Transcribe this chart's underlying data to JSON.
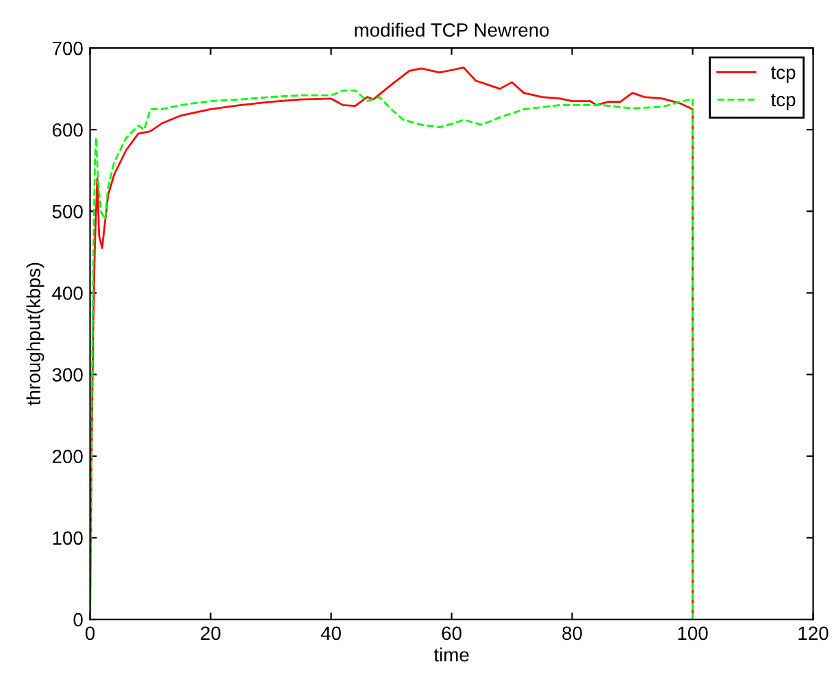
{
  "chart_data": {
    "type": "line",
    "title": "modified TCP Newreno",
    "xlabel": "time",
    "ylabel": "throughput(kbps)",
    "xlim": [
      0,
      120
    ],
    "xticks": [
      0,
      20,
      40,
      60,
      80,
      100,
      120
    ],
    "ylim": [
      0,
      700
    ],
    "yticks": [
      0,
      100,
      200,
      300,
      400,
      500,
      600,
      700
    ],
    "grid": false,
    "legend": "top right",
    "series": [
      {
        "name": "tcp",
        "color": "#ff0000",
        "line_style": "solid",
        "x": [
          0,
          0.2,
          0.5,
          0.8,
          1.2,
          1.5,
          2,
          3,
          4,
          6,
          8,
          10,
          12,
          15,
          20,
          25,
          30,
          35,
          40,
          42,
          44,
          46,
          47,
          50,
          53,
          55,
          58,
          60,
          62,
          64,
          66,
          68,
          70,
          72,
          75,
          78,
          80,
          83,
          84,
          86,
          88,
          90,
          92,
          95,
          98,
          100,
          100
        ],
        "values": [
          0,
          170,
          350,
          460,
          540,
          470,
          455,
          520,
          545,
          575,
          595,
          598,
          608,
          617,
          625,
          630,
          634,
          637,
          638,
          630,
          629,
          640,
          637,
          655,
          672,
          675,
          670,
          673,
          676,
          660,
          655,
          650,
          658,
          645,
          640,
          638,
          635,
          635,
          630,
          634,
          634,
          645,
          640,
          638,
          632,
          625,
          0
        ]
      },
      {
        "name": "tcp",
        "color": "#00ff00",
        "line_style": "dashed",
        "x": [
          0,
          0.2,
          0.5,
          0.8,
          1,
          1.3,
          1.8,
          2.5,
          3,
          4,
          6,
          8,
          9,
          10,
          12,
          15,
          20,
          25,
          30,
          35,
          40,
          42,
          44,
          46,
          48,
          50,
          52,
          55,
          58,
          60,
          62,
          65,
          68,
          72,
          78,
          85,
          90,
          95,
          100,
          100
        ],
        "values": [
          0,
          190,
          420,
          560,
          590,
          540,
          500,
          490,
          530,
          560,
          590,
          605,
          600,
          625,
          625,
          630,
          635,
          637,
          640,
          642,
          642,
          648,
          648,
          635,
          640,
          625,
          612,
          606,
          603,
          607,
          612,
          606,
          615,
          625,
          630,
          630,
          626,
          628,
          638,
          0
        ]
      }
    ]
  }
}
